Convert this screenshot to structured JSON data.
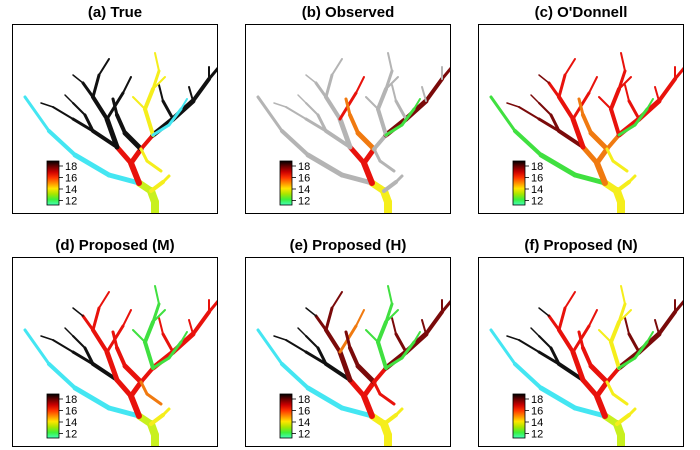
{
  "figure": {
    "panels": [
      {
        "id": "a",
        "title": "(a) True",
        "scheme": "true"
      },
      {
        "id": "b",
        "title": "(b) Observed",
        "scheme": "observed"
      },
      {
        "id": "c",
        "title": "(c) O'Donnell",
        "scheme": "odonnell"
      },
      {
        "id": "d",
        "title": "(d) Proposed (M)",
        "scheme": "propM"
      },
      {
        "id": "e",
        "title": "(e) Proposed (H)",
        "scheme": "propH"
      },
      {
        "id": "f",
        "title": "(f) Proposed (N)",
        "scheme": "propN"
      }
    ],
    "colorbar": {
      "ticks": [
        "18",
        "16",
        "14",
        "12"
      ],
      "colors": [
        "#000000",
        "#6b0000",
        "#cc0000",
        "#ff3300",
        "#ff8c00",
        "#ffe600",
        "#a8e600",
        "#3cf03c",
        "#44ffbb"
      ]
    },
    "segment_colors": {
      "black": "#111111",
      "dark_red": "#7a0a0a",
      "red": "#e8120c",
      "orange": "#f07a10",
      "yellow": "#f5ee1c",
      "yellow_green": "#c8f01e",
      "green": "#40e040",
      "cyan": "#44e6f2",
      "gray": "#b4b4b4"
    }
  }
}
